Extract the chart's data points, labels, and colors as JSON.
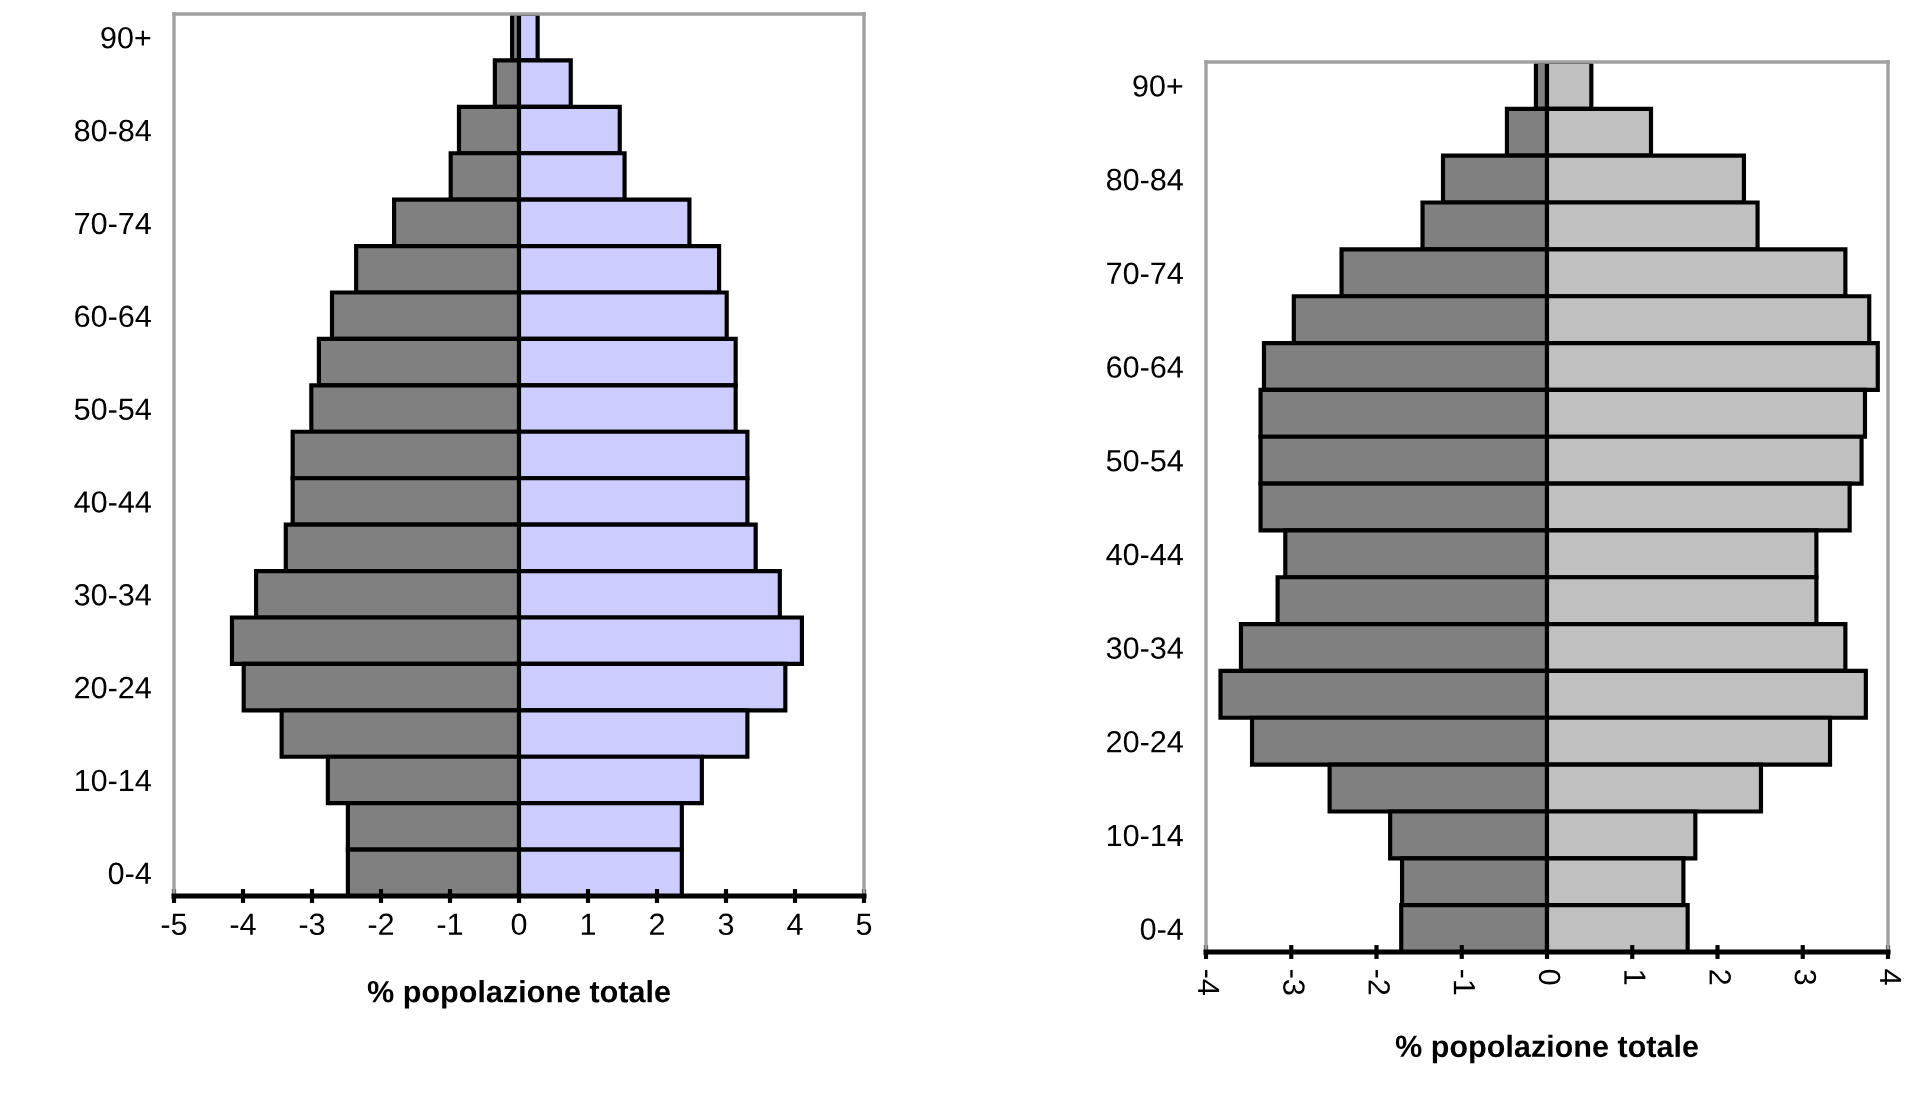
{
  "chart_data": [
    {
      "type": "bar",
      "orientation": "horizontal",
      "xlabel": "% popolazione totale",
      "categories": [
        "90+",
        null,
        "80-84",
        null,
        "70-74",
        null,
        "60-64",
        null,
        "50-54",
        null,
        "40-44",
        null,
        "30-34",
        null,
        "20-24",
        null,
        "10-14",
        null,
        "0-4"
      ],
      "series": [
        {
          "color": "#808080",
          "values": [
            -0.1,
            -0.35,
            -0.87,
            -0.99,
            -1.81,
            -2.36,
            -2.71,
            -2.9,
            -3.01,
            -3.28,
            -3.28,
            -3.38,
            -3.81,
            -4.16,
            -3.99,
            -3.44,
            -2.77,
            -2.48,
            -2.48
          ]
        },
        {
          "color": "#ccccff",
          "values": [
            0.27,
            0.75,
            1.46,
            1.53,
            2.47,
            2.9,
            3.01,
            3.14,
            3.14,
            3.31,
            3.31,
            3.43,
            3.78,
            4.1,
            3.86,
            3.31,
            2.65,
            2.36,
            2.36
          ]
        }
      ],
      "xlim": [
        -5,
        5
      ],
      "xticks": [
        -5,
        -4,
        -3,
        -2,
        -1,
        0,
        1,
        2,
        3,
        4,
        5
      ],
      "stacked": true,
      "grid": false
    },
    {
      "type": "bar",
      "orientation": "horizontal",
      "xlabel": "% popolazione totale",
      "categories": [
        "90+",
        null,
        "80-84",
        null,
        "70-74",
        null,
        "60-64",
        null,
        "50-54",
        null,
        "40-44",
        null,
        "30-34",
        null,
        "20-24",
        null,
        "10-14",
        null,
        "0-4"
      ],
      "series": [
        {
          "color": "#808080",
          "values": [
            -0.13,
            -0.47,
            -1.22,
            -1.46,
            -2.41,
            -2.97,
            -3.32,
            -3.36,
            -3.36,
            -3.36,
            -3.07,
            -3.16,
            -3.59,
            -3.83,
            -3.46,
            -2.55,
            -1.84,
            -1.7,
            -1.71
          ]
        },
        {
          "color": "#c0c0c0",
          "values": [
            0.52,
            1.22,
            2.31,
            2.47,
            3.5,
            3.78,
            3.88,
            3.73,
            3.69,
            3.55,
            3.16,
            3.16,
            3.5,
            3.74,
            3.32,
            2.51,
            1.74,
            1.6,
            1.65
          ]
        }
      ],
      "xlim": [
        -4,
        4
      ],
      "xticks": [
        -4,
        -3,
        -2,
        -1,
        0,
        1,
        2,
        3,
        4
      ],
      "stacked": true,
      "grid": false
    }
  ]
}
